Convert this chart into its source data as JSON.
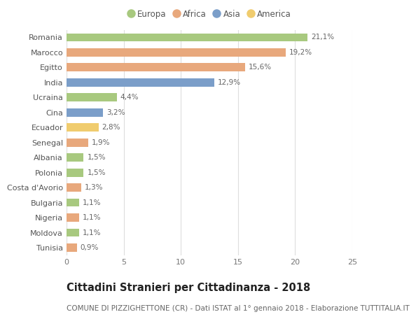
{
  "countries": [
    "Romania",
    "Marocco",
    "Egitto",
    "India",
    "Ucraina",
    "Cina",
    "Ecuador",
    "Senegal",
    "Albania",
    "Polonia",
    "Costa d'Avorio",
    "Bulgaria",
    "Nigeria",
    "Moldova",
    "Tunisia"
  ],
  "values": [
    21.1,
    19.2,
    15.6,
    12.9,
    4.4,
    3.2,
    2.8,
    1.9,
    1.5,
    1.5,
    1.3,
    1.1,
    1.1,
    1.1,
    0.9
  ],
  "labels": [
    "21,1%",
    "19,2%",
    "15,6%",
    "12,9%",
    "4,4%",
    "3,2%",
    "2,8%",
    "1,9%",
    "1,5%",
    "1,5%",
    "1,3%",
    "1,1%",
    "1,1%",
    "1,1%",
    "0,9%"
  ],
  "continents": [
    "Europa",
    "Africa",
    "Africa",
    "Asia",
    "Europa",
    "Asia",
    "America",
    "Africa",
    "Europa",
    "Europa",
    "Africa",
    "Europa",
    "Africa",
    "Europa",
    "Africa"
  ],
  "colors": {
    "Europa": "#a8c97f",
    "Africa": "#e8a87c",
    "Asia": "#7b9ec9",
    "America": "#f0cc6e"
  },
  "legend_order": [
    "Europa",
    "Africa",
    "Asia",
    "America"
  ],
  "title": "Cittadini Stranieri per Cittadinanza - 2018",
  "subtitle": "COMUNE DI PIZZIGHETTONE (CR) - Dati ISTAT al 1° gennaio 2018 - Elaborazione TUTTITALIA.IT",
  "xlim": [
    0,
    25
  ],
  "xticks": [
    0,
    5,
    10,
    15,
    20,
    25
  ],
  "background_color": "#ffffff",
  "grid_color": "#dddddd",
  "bar_height": 0.55,
  "title_fontsize": 10.5,
  "subtitle_fontsize": 7.5,
  "label_fontsize": 7.5,
  "tick_fontsize": 8,
  "legend_fontsize": 8.5
}
